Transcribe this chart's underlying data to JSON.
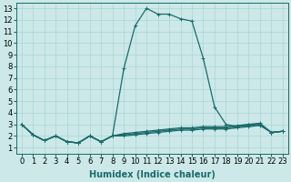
{
  "title": "",
  "xlabel": "Humidex (Indice chaleur)",
  "ylabel": "",
  "bg_color": "#cce8e8",
  "line_color": "#1a6b6b",
  "grid_color": "#aad4d4",
  "xlim_min": -0.5,
  "xlim_max": 23.5,
  "ylim_min": 0.5,
  "ylim_max": 13.5,
  "xticks": [
    0,
    1,
    2,
    3,
    4,
    5,
    6,
    7,
    8,
    9,
    10,
    11,
    12,
    13,
    14,
    15,
    16,
    17,
    18,
    19,
    20,
    21,
    22,
    23
  ],
  "yticks": [
    1,
    2,
    3,
    4,
    5,
    6,
    7,
    8,
    9,
    10,
    11,
    12,
    13
  ],
  "series": [
    [
      3.0,
      2.1,
      1.6,
      2.0,
      1.5,
      1.4,
      2.0,
      1.5,
      2.0,
      7.8,
      11.5,
      13.0,
      12.5,
      12.5,
      12.1,
      11.9,
      8.7,
      4.5,
      3.0,
      2.8,
      3.0,
      3.0,
      2.3,
      2.4
    ],
    [
      3.0,
      2.1,
      1.6,
      2.0,
      1.5,
      1.4,
      2.0,
      1.5,
      2.0,
      2.0,
      2.1,
      2.2,
      2.3,
      2.4,
      2.5,
      2.5,
      2.6,
      2.6,
      2.6,
      2.7,
      2.8,
      2.9,
      2.3,
      2.4
    ],
    [
      3.0,
      2.1,
      1.6,
      2.0,
      1.5,
      1.4,
      2.0,
      1.5,
      2.0,
      2.1,
      2.2,
      2.3,
      2.4,
      2.5,
      2.6,
      2.6,
      2.7,
      2.7,
      2.7,
      2.8,
      2.9,
      3.0,
      2.3,
      2.4
    ],
    [
      3.0,
      2.1,
      1.6,
      2.0,
      1.5,
      1.4,
      2.0,
      1.5,
      2.0,
      2.2,
      2.3,
      2.4,
      2.5,
      2.6,
      2.7,
      2.7,
      2.8,
      2.8,
      2.8,
      2.9,
      3.0,
      3.1,
      2.3,
      2.4
    ]
  ],
  "marker": "+",
  "markersize": 3,
  "linewidth": 0.9,
  "fontsize_label": 7,
  "fontsize_tick": 6
}
